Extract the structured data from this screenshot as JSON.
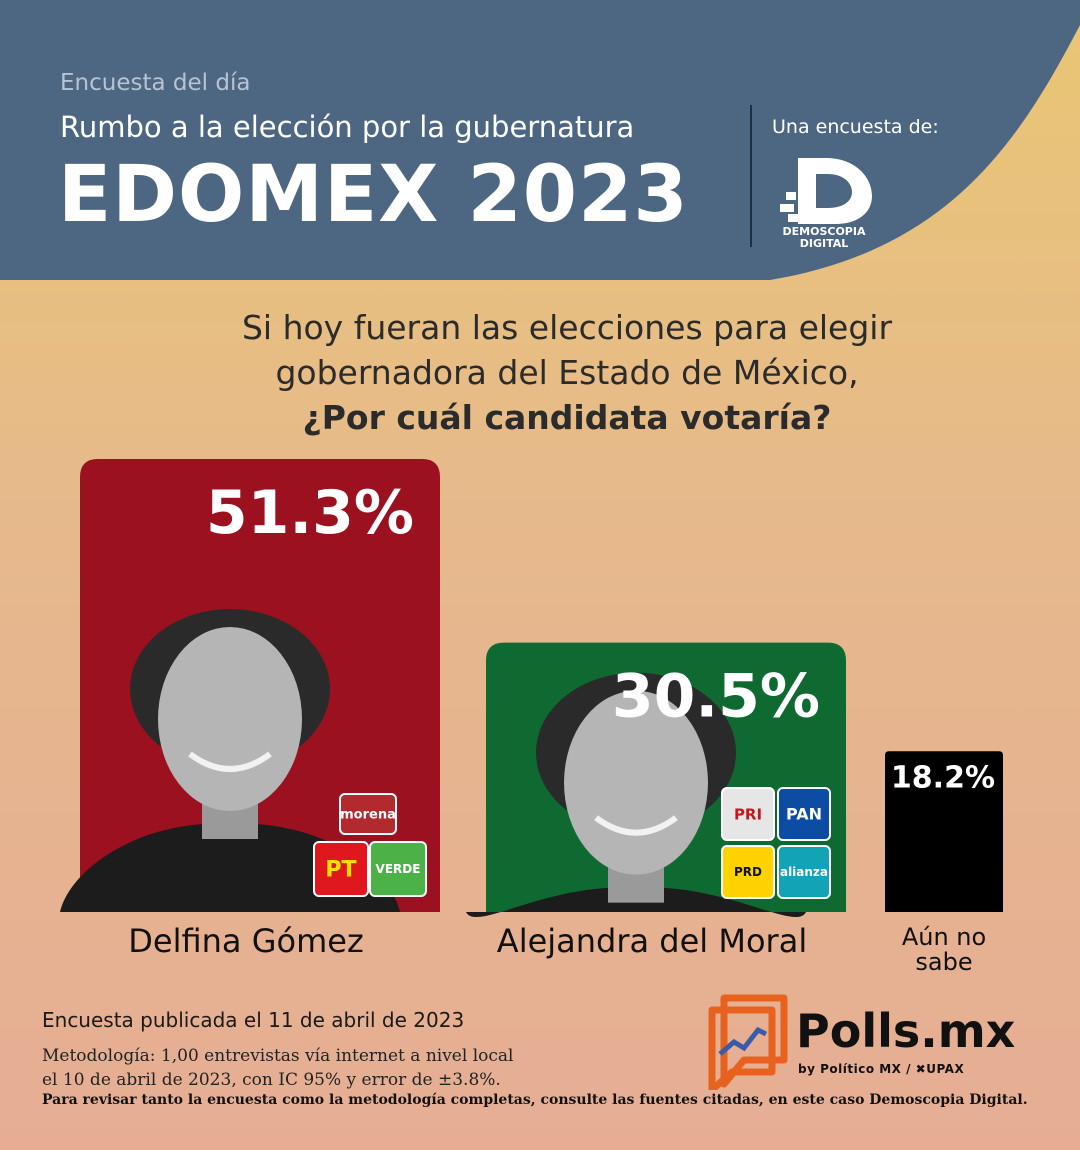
{
  "header": {
    "kicker": "Encuesta del día",
    "subtitle": "Rumbo a la elección por la gubernatura",
    "title": "EDOMEX 2023",
    "by_label": "Una encuesta de:",
    "logo_line1": "DEMOSCOPIA",
    "logo_line2": "DIGITAL"
  },
  "question": {
    "line1": "Si hoy fueran las elecciones para elegir",
    "line2": "gobernadora del Estado de México,",
    "line3": "¿Por cuál candidata votaría?"
  },
  "chart_data": {
    "type": "bar",
    "title": "",
    "xlabel": "",
    "ylabel": "",
    "categories": [
      "Delfina Gómez",
      "Alejandra del Moral",
      "Aún no sabe"
    ],
    "values": [
      51.3,
      30.5,
      18.2
    ],
    "value_labels": [
      "51.3%",
      "30.5%",
      "18.2%"
    ],
    "colors": [
      "#9b1120",
      "#0f6a31",
      "#000000"
    ],
    "parties": [
      [
        "morena",
        "PT",
        "VERDE"
      ],
      [
        "PRI",
        "PAN",
        "PRD",
        "alianza"
      ],
      []
    ],
    "ylim": [
      0,
      51.3
    ],
    "grid": false
  },
  "notes": {
    "published": "Encuesta publicada el 11 de abril de 2023",
    "methodology_1": "Metodología: 1,00 entrevistas vía internet a nivel local",
    "methodology_2": "el 10 de abril de 2023, con IC 95% y error de ±3.8%.",
    "disclaimer": "Para revisar tanto la encuesta como la metodología completas, consulte las fuentes citadas, en este caso Demoscopia Digital."
  },
  "brand": {
    "name": "Polls.mx",
    "by": "by Político MX  /  ✖UPAX"
  },
  "colors": {
    "header_bg": "#4d6681",
    "accent_orange": "#e8621f"
  }
}
